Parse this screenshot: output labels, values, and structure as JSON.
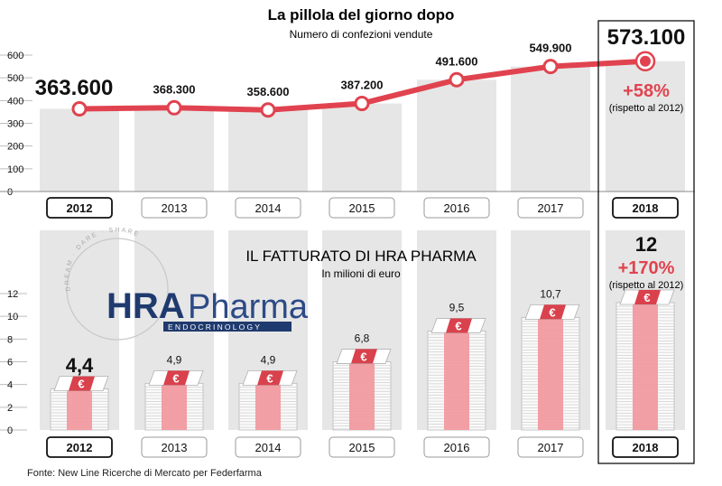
{
  "colors": {
    "column": "#e6e6e6",
    "line": "#e0434f",
    "accent": "#e0434f",
    "money": "#d9414c",
    "money_light": "#f19aa0",
    "text": "#111111",
    "grid": "#bdbdbd"
  },
  "chart_data": [
    {
      "type": "line",
      "title": "La pillola del giorno dopo",
      "subtitle": "Numero di confezioni vendute",
      "categories": [
        "2012",
        "2013",
        "2014",
        "2015",
        "2016",
        "2017",
        "2018"
      ],
      "values": [
        363600,
        368300,
        358600,
        387200,
        491600,
        549900,
        573100
      ],
      "value_labels": [
        "363.600",
        "368.300",
        "358.600",
        "387.200",
        "491.600",
        "549.900",
        "573.100"
      ],
      "y_ticks": [
        "0",
        "100",
        "200",
        "300",
        "400",
        "500",
        "600"
      ],
      "ylim": [
        0,
        600
      ],
      "highlight": {
        "change": "+58%",
        "note": "(rispetto al 2012)"
      }
    },
    {
      "type": "bar",
      "title": "IL FATTURATO DI HRA PHARMA",
      "subtitle": "In milioni di euro",
      "categories": [
        "2012",
        "2013",
        "2014",
        "2015",
        "2016",
        "2017",
        "2018"
      ],
      "values": [
        4.4,
        4.9,
        4.9,
        6.8,
        9.5,
        10.7,
        12
      ],
      "value_labels": [
        "4,4",
        "4,9",
        "4,9",
        "6,8",
        "9,5",
        "10,7",
        "12"
      ],
      "y_ticks": [
        "0",
        "2",
        "4",
        "6",
        "8",
        "10",
        "12"
      ],
      "ylim": [
        0,
        12
      ],
      "highlight": {
        "change": "+170%",
        "note": "(rispetto al 2012)"
      }
    }
  ],
  "logo": {
    "brand_bold": "HRA",
    "brand_light": "Pharma",
    "sub": "ENDOCRINOLOGY",
    "ring_text": "DREAM · DARE · SHARE"
  },
  "currency_symbol": "€",
  "source": "Fonte: New Line Ricerche di Mercato per Federfarma"
}
